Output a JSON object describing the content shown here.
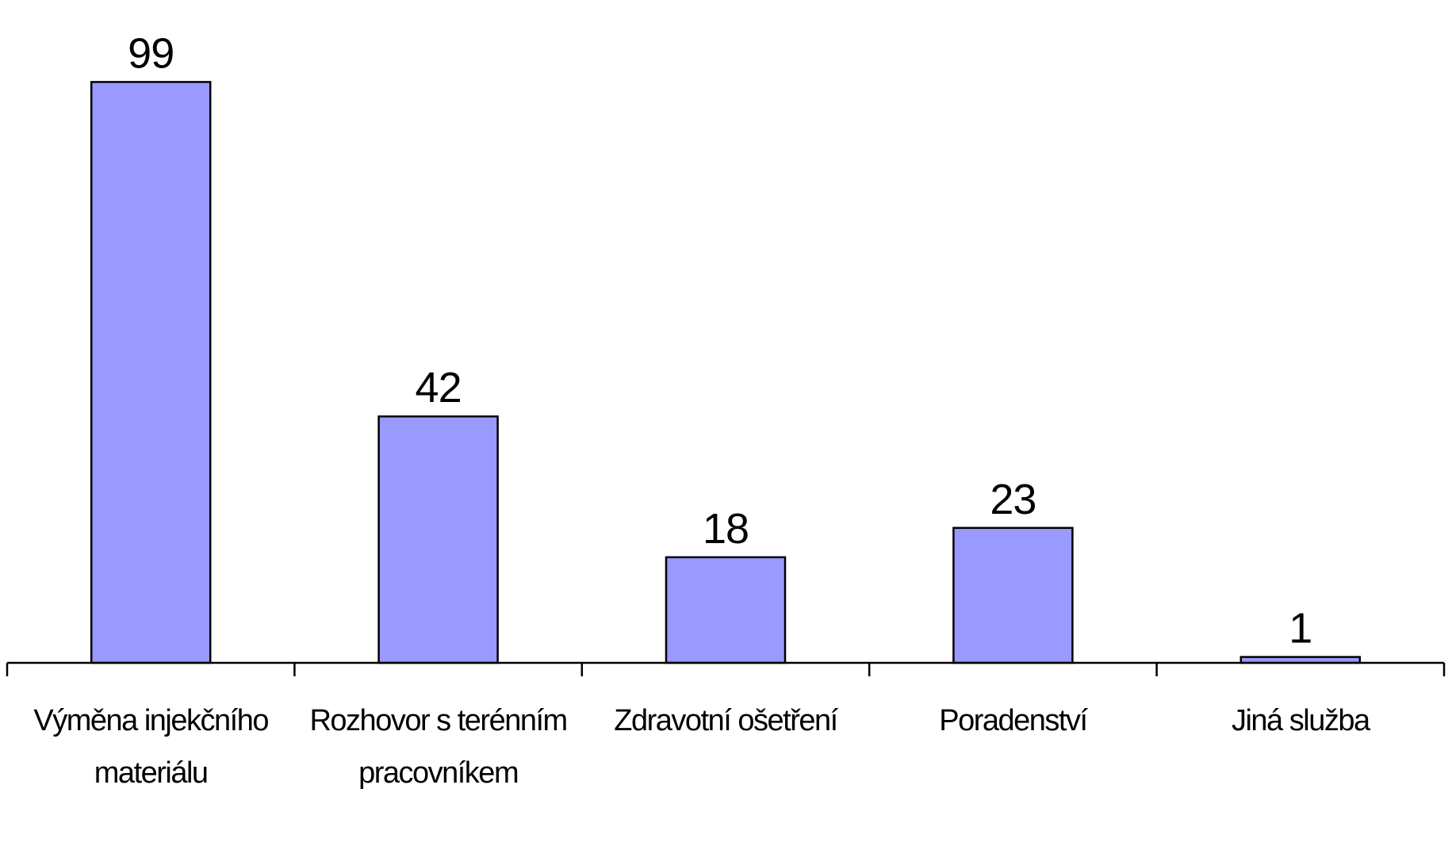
{
  "chart_data": {
    "type": "bar",
    "categories": [
      "Výměna injekčního materiálu",
      "Rozhovor s terénním pracovníkem",
      "Zdravotní ošetření",
      "Poradenství",
      "Jiná služba"
    ],
    "values": [
      99,
      42,
      18,
      23,
      1
    ],
    "color": "#9999ff"
  }
}
